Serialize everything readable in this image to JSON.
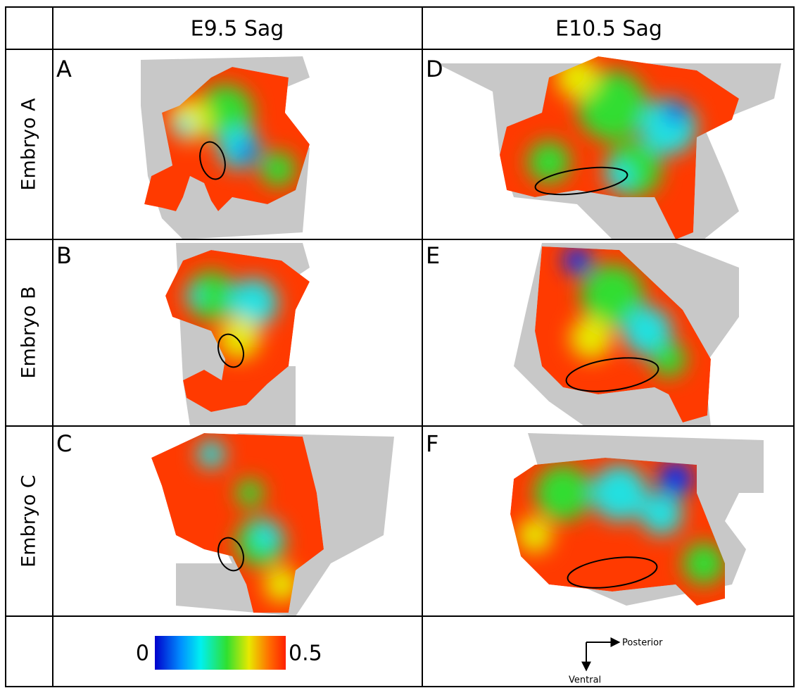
{
  "columns": [
    "E9.5 Sag",
    "E10.5 Sag"
  ],
  "rows": [
    {
      "label": "Embryo A",
      "panels": [
        "A",
        "D"
      ]
    },
    {
      "label": "Embryo B",
      "panels": [
        "B",
        "E"
      ]
    },
    {
      "label": "Embryo C",
      "panels": [
        "C",
        "F"
      ]
    }
  ],
  "colorbar": {
    "min": 0,
    "max": 0.5
  },
  "orientation": {
    "x": "Posterior",
    "y": "Ventral"
  }
}
